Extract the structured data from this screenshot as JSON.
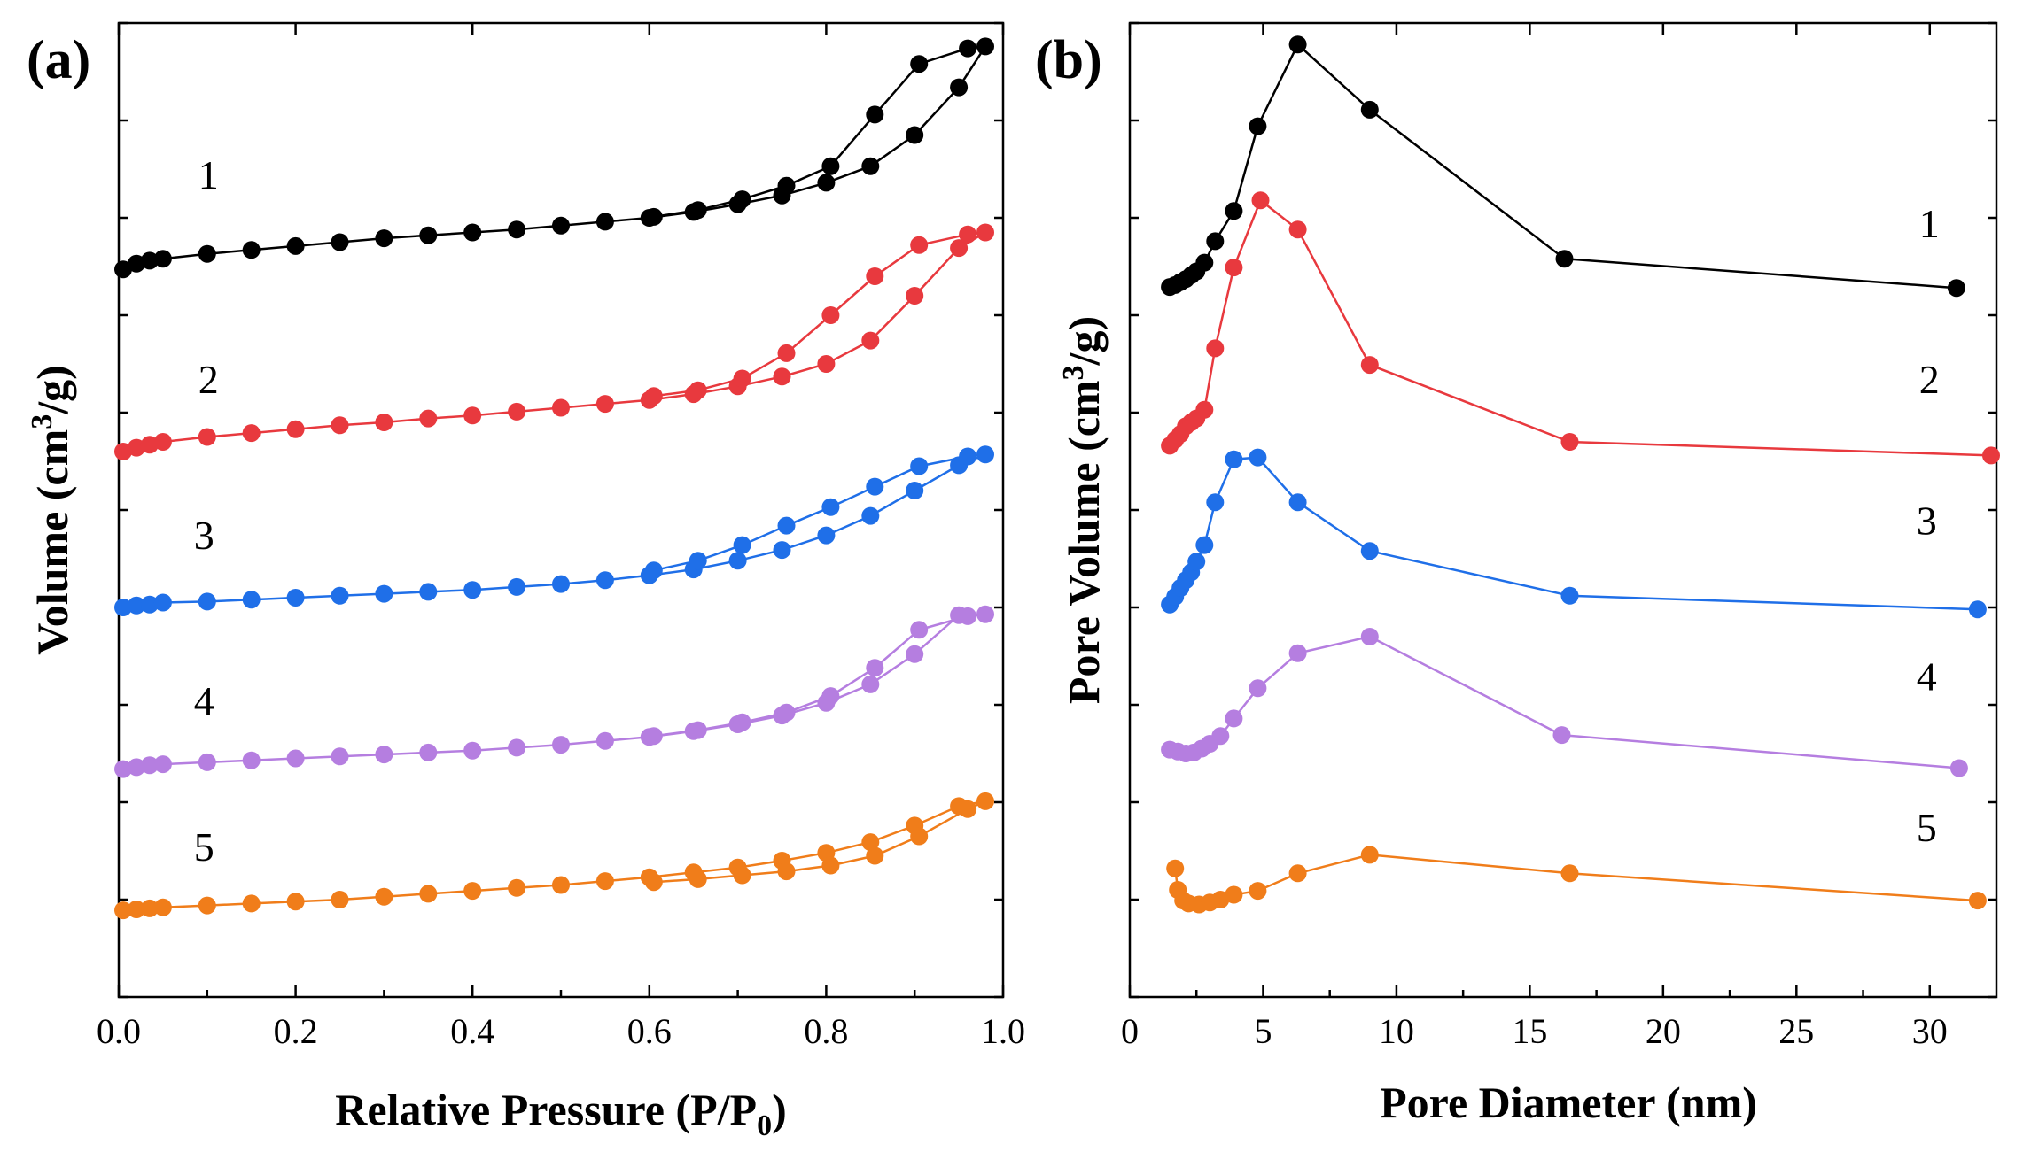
{
  "colors": {
    "series1": "#000000",
    "series2": "#e8393e",
    "series3": "#1f6fe8",
    "series4": "#b57ee0",
    "series5": "#f07d1a"
  },
  "chart_data": [
    {
      "panel_label": "(a)",
      "type": "line",
      "title": "",
      "xlabel_main": "Relative Pressure (P/P",
      "xlabel_sub": "0",
      "xlabel_end": ")",
      "ylabel_main": "Volume (cm",
      "ylabel_sup": "3",
      "ylabel_end": "/g)",
      "xlim": [
        0,
        1.0
      ],
      "ylim": [
        0,
        100
      ],
      "xticks": [
        0.0,
        0.2,
        0.4,
        0.6,
        0.8,
        1.0
      ],
      "xtick_labels": [
        "0.0",
        "0.2",
        "0.4",
        "0.6",
        "0.8",
        "1.0"
      ],
      "y_tick_labels_shown": false,
      "series": [
        {
          "name": "1",
          "color_key": "series1",
          "label_x": 0.09,
          "label_y": 83,
          "adsorption": [
            [
              0.005,
              74.7
            ],
            [
              0.02,
              75.3
            ],
            [
              0.035,
              75.6
            ],
            [
              0.05,
              75.8
            ],
            [
              0.1,
              76.3
            ],
            [
              0.15,
              76.7
            ],
            [
              0.2,
              77.1
            ],
            [
              0.25,
              77.5
            ],
            [
              0.3,
              77.9
            ],
            [
              0.35,
              78.2
            ],
            [
              0.4,
              78.5
            ],
            [
              0.45,
              78.8
            ],
            [
              0.5,
              79.2
            ],
            [
              0.55,
              79.6
            ],
            [
              0.6,
              80.0
            ],
            [
              0.65,
              80.6
            ],
            [
              0.7,
              81.4
            ],
            [
              0.75,
              82.3
            ],
            [
              0.8,
              83.6
            ],
            [
              0.85,
              85.3
            ],
            [
              0.9,
              88.5
            ],
            [
              0.95,
              93.4
            ],
            [
              0.98,
              97.6
            ]
          ],
          "desorption": [
            [
              0.98,
              97.6
            ],
            [
              0.96,
              97.4
            ],
            [
              0.905,
              95.8
            ],
            [
              0.855,
              90.6
            ],
            [
              0.805,
              85.3
            ],
            [
              0.755,
              83.3
            ],
            [
              0.705,
              81.9
            ],
            [
              0.655,
              80.8
            ],
            [
              0.605,
              80.1
            ]
          ]
        },
        {
          "name": "2",
          "color_key": "series2",
          "label_x": 0.09,
          "label_y": 62,
          "adsorption": [
            [
              0.005,
              56.0
            ],
            [
              0.02,
              56.4
            ],
            [
              0.035,
              56.7
            ],
            [
              0.05,
              57.0
            ],
            [
              0.1,
              57.5
            ],
            [
              0.15,
              57.9
            ],
            [
              0.2,
              58.3
            ],
            [
              0.25,
              58.7
            ],
            [
              0.3,
              59.0
            ],
            [
              0.35,
              59.4
            ],
            [
              0.4,
              59.7
            ],
            [
              0.45,
              60.1
            ],
            [
              0.5,
              60.5
            ],
            [
              0.55,
              60.9
            ],
            [
              0.6,
              61.3
            ],
            [
              0.65,
              61.9
            ],
            [
              0.7,
              62.7
            ],
            [
              0.75,
              63.7
            ],
            [
              0.8,
              65.0
            ],
            [
              0.85,
              67.4
            ],
            [
              0.9,
              72.0
            ],
            [
              0.95,
              76.9
            ],
            [
              0.98,
              78.5
            ]
          ],
          "desorption": [
            [
              0.98,
              78.5
            ],
            [
              0.96,
              78.3
            ],
            [
              0.905,
              77.2
            ],
            [
              0.855,
              74.0
            ],
            [
              0.805,
              70.0
            ],
            [
              0.755,
              66.1
            ],
            [
              0.705,
              63.5
            ],
            [
              0.655,
              62.3
            ],
            [
              0.605,
              61.7
            ]
          ]
        },
        {
          "name": "3",
          "color_key": "series3",
          "label_x": 0.085,
          "label_y": 46,
          "adsorption": [
            [
              0.005,
              40.0
            ],
            [
              0.02,
              40.2
            ],
            [
              0.035,
              40.3
            ],
            [
              0.05,
              40.5
            ],
            [
              0.1,
              40.6
            ],
            [
              0.15,
              40.8
            ],
            [
              0.2,
              41.0
            ],
            [
              0.25,
              41.2
            ],
            [
              0.3,
              41.4
            ],
            [
              0.35,
              41.6
            ],
            [
              0.4,
              41.8
            ],
            [
              0.45,
              42.1
            ],
            [
              0.5,
              42.4
            ],
            [
              0.55,
              42.8
            ],
            [
              0.6,
              43.3
            ],
            [
              0.65,
              43.9
            ],
            [
              0.7,
              44.8
            ],
            [
              0.75,
              45.9
            ],
            [
              0.8,
              47.4
            ],
            [
              0.85,
              49.4
            ],
            [
              0.9,
              52.0
            ],
            [
              0.95,
              54.6
            ],
            [
              0.98,
              55.7
            ]
          ],
          "desorption": [
            [
              0.98,
              55.7
            ],
            [
              0.96,
              55.5
            ],
            [
              0.905,
              54.5
            ],
            [
              0.855,
              52.4
            ],
            [
              0.805,
              50.3
            ],
            [
              0.755,
              48.4
            ],
            [
              0.705,
              46.4
            ],
            [
              0.655,
              44.8
            ],
            [
              0.605,
              43.8
            ]
          ]
        },
        {
          "name": "4",
          "color_key": "series4",
          "label_x": 0.085,
          "label_y": 29,
          "adsorption": [
            [
              0.005,
              23.4
            ],
            [
              0.02,
              23.6
            ],
            [
              0.035,
              23.8
            ],
            [
              0.05,
              23.9
            ],
            [
              0.1,
              24.1
            ],
            [
              0.15,
              24.3
            ],
            [
              0.2,
              24.5
            ],
            [
              0.25,
              24.7
            ],
            [
              0.3,
              24.9
            ],
            [
              0.35,
              25.1
            ],
            [
              0.4,
              25.3
            ],
            [
              0.45,
              25.6
            ],
            [
              0.5,
              25.9
            ],
            [
              0.55,
              26.3
            ],
            [
              0.6,
              26.7
            ],
            [
              0.65,
              27.3
            ],
            [
              0.7,
              28.0
            ],
            [
              0.75,
              28.9
            ],
            [
              0.8,
              30.2
            ],
            [
              0.85,
              32.1
            ],
            [
              0.9,
              35.2
            ],
            [
              0.95,
              39.2
            ],
            [
              0.98,
              39.3
            ]
          ],
          "desorption": [
            [
              0.98,
              39.3
            ],
            [
              0.96,
              39.1
            ],
            [
              0.905,
              37.7
            ],
            [
              0.855,
              33.8
            ],
            [
              0.805,
              30.9
            ],
            [
              0.755,
              29.2
            ],
            [
              0.705,
              28.2
            ],
            [
              0.655,
              27.4
            ],
            [
              0.605,
              26.8
            ]
          ]
        },
        {
          "name": "5",
          "color_key": "series5",
          "label_x": 0.085,
          "label_y": 14,
          "adsorption": [
            [
              0.005,
              8.9
            ],
            [
              0.02,
              9.0
            ],
            [
              0.035,
              9.1
            ],
            [
              0.05,
              9.2
            ],
            [
              0.1,
              9.4
            ],
            [
              0.15,
              9.6
            ],
            [
              0.2,
              9.8
            ],
            [
              0.25,
              10.0
            ],
            [
              0.3,
              10.3
            ],
            [
              0.35,
              10.6
            ],
            [
              0.4,
              10.9
            ],
            [
              0.45,
              11.2
            ],
            [
              0.5,
              11.5
            ],
            [
              0.55,
              11.9
            ],
            [
              0.6,
              12.3
            ],
            [
              0.65,
              12.8
            ],
            [
              0.7,
              13.3
            ],
            [
              0.75,
              14.0
            ],
            [
              0.8,
              14.8
            ],
            [
              0.85,
              15.9
            ],
            [
              0.9,
              17.6
            ],
            [
              0.95,
              19.6
            ],
            [
              0.98,
              20.1
            ]
          ],
          "desorption": [
            [
              0.98,
              20.1
            ],
            [
              0.96,
              19.3
            ],
            [
              0.905,
              16.5
            ],
            [
              0.855,
              14.5
            ],
            [
              0.805,
              13.5
            ],
            [
              0.755,
              12.9
            ],
            [
              0.705,
              12.5
            ],
            [
              0.655,
              12.1
            ],
            [
              0.605,
              11.8
            ]
          ]
        }
      ]
    },
    {
      "panel_label": "(b)",
      "type": "line",
      "title": "",
      "xlabel": "Pore Diameter (nm)",
      "ylabel_main": "Pore Volume (cm",
      "ylabel_sup": "3",
      "ylabel_end": "/g)",
      "xlim": [
        0,
        32.5
      ],
      "ylim": [
        0,
        100
      ],
      "xticks": [
        0,
        5,
        10,
        15,
        20,
        25,
        30
      ],
      "xtick_labels": [
        "0",
        "5",
        "10",
        "15",
        "20",
        "25",
        "30"
      ],
      "y_tick_labels_shown": false,
      "series": [
        {
          "name": "1",
          "color_key": "series1",
          "label_x": 29.6,
          "label_y": 78,
          "points": [
            [
              1.5,
              72.9
            ],
            [
              1.7,
              73.1
            ],
            [
              1.9,
              73.4
            ],
            [
              2.1,
              73.7
            ],
            [
              2.3,
              74.1
            ],
            [
              2.5,
              74.5
            ],
            [
              2.8,
              75.4
            ],
            [
              3.2,
              77.6
            ],
            [
              3.9,
              80.7
            ],
            [
              4.8,
              89.4
            ],
            [
              6.3,
              97.8
            ],
            [
              9.0,
              91.1
            ],
            [
              16.3,
              75.8
            ],
            [
              31.0,
              72.8
            ]
          ]
        },
        {
          "name": "2",
          "color_key": "series2",
          "label_x": 29.6,
          "label_y": 62,
          "points": [
            [
              1.5,
              56.6
            ],
            [
              1.7,
              57.2
            ],
            [
              1.9,
              57.8
            ],
            [
              2.1,
              58.6
            ],
            [
              2.3,
              59.0
            ],
            [
              2.5,
              59.4
            ],
            [
              2.8,
              60.3
            ],
            [
              3.2,
              66.6
            ],
            [
              3.9,
              74.9
            ],
            [
              4.9,
              81.8
            ],
            [
              6.3,
              78.8
            ],
            [
              9.0,
              64.9
            ],
            [
              16.5,
              57.0
            ],
            [
              32.3,
              55.6
            ]
          ]
        },
        {
          "name": "3",
          "color_key": "series3",
          "label_x": 29.5,
          "label_y": 47.5,
          "points": [
            [
              1.5,
              40.3
            ],
            [
              1.7,
              41.1
            ],
            [
              1.9,
              42.0
            ],
            [
              2.1,
              42.8
            ],
            [
              2.3,
              43.6
            ],
            [
              2.5,
              44.7
            ],
            [
              2.8,
              46.4
            ],
            [
              3.2,
              50.8
            ],
            [
              3.9,
              55.2
            ],
            [
              4.8,
              55.4
            ],
            [
              6.3,
              50.8
            ],
            [
              9.0,
              45.8
            ],
            [
              16.5,
              41.2
            ],
            [
              31.8,
              39.8
            ]
          ]
        },
        {
          "name": "4",
          "color_key": "series4",
          "label_x": 29.5,
          "label_y": 31.5,
          "points": [
            [
              1.5,
              25.4
            ],
            [
              1.8,
              25.2
            ],
            [
              2.1,
              25.0
            ],
            [
              2.4,
              25.1
            ],
            [
              2.7,
              25.5
            ],
            [
              3.0,
              26.0
            ],
            [
              3.4,
              26.8
            ],
            [
              3.9,
              28.6
            ],
            [
              4.8,
              31.7
            ],
            [
              6.3,
              35.3
            ],
            [
              9.0,
              37.0
            ],
            [
              16.2,
              26.9
            ],
            [
              31.1,
              23.5
            ]
          ]
        },
        {
          "name": "5",
          "color_key": "series5",
          "label_x": 29.5,
          "label_y": 16,
          "points": [
            [
              1.7,
              13.2
            ],
            [
              1.8,
              11.0
            ],
            [
              2.0,
              9.9
            ],
            [
              2.2,
              9.6
            ],
            [
              2.6,
              9.5
            ],
            [
              3.0,
              9.7
            ],
            [
              3.4,
              10.0
            ],
            [
              3.9,
              10.5
            ],
            [
              4.8,
              10.9
            ],
            [
              6.3,
              12.7
            ],
            [
              9.0,
              14.6
            ],
            [
              16.5,
              12.7
            ],
            [
              31.8,
              9.9
            ]
          ]
        }
      ]
    }
  ]
}
